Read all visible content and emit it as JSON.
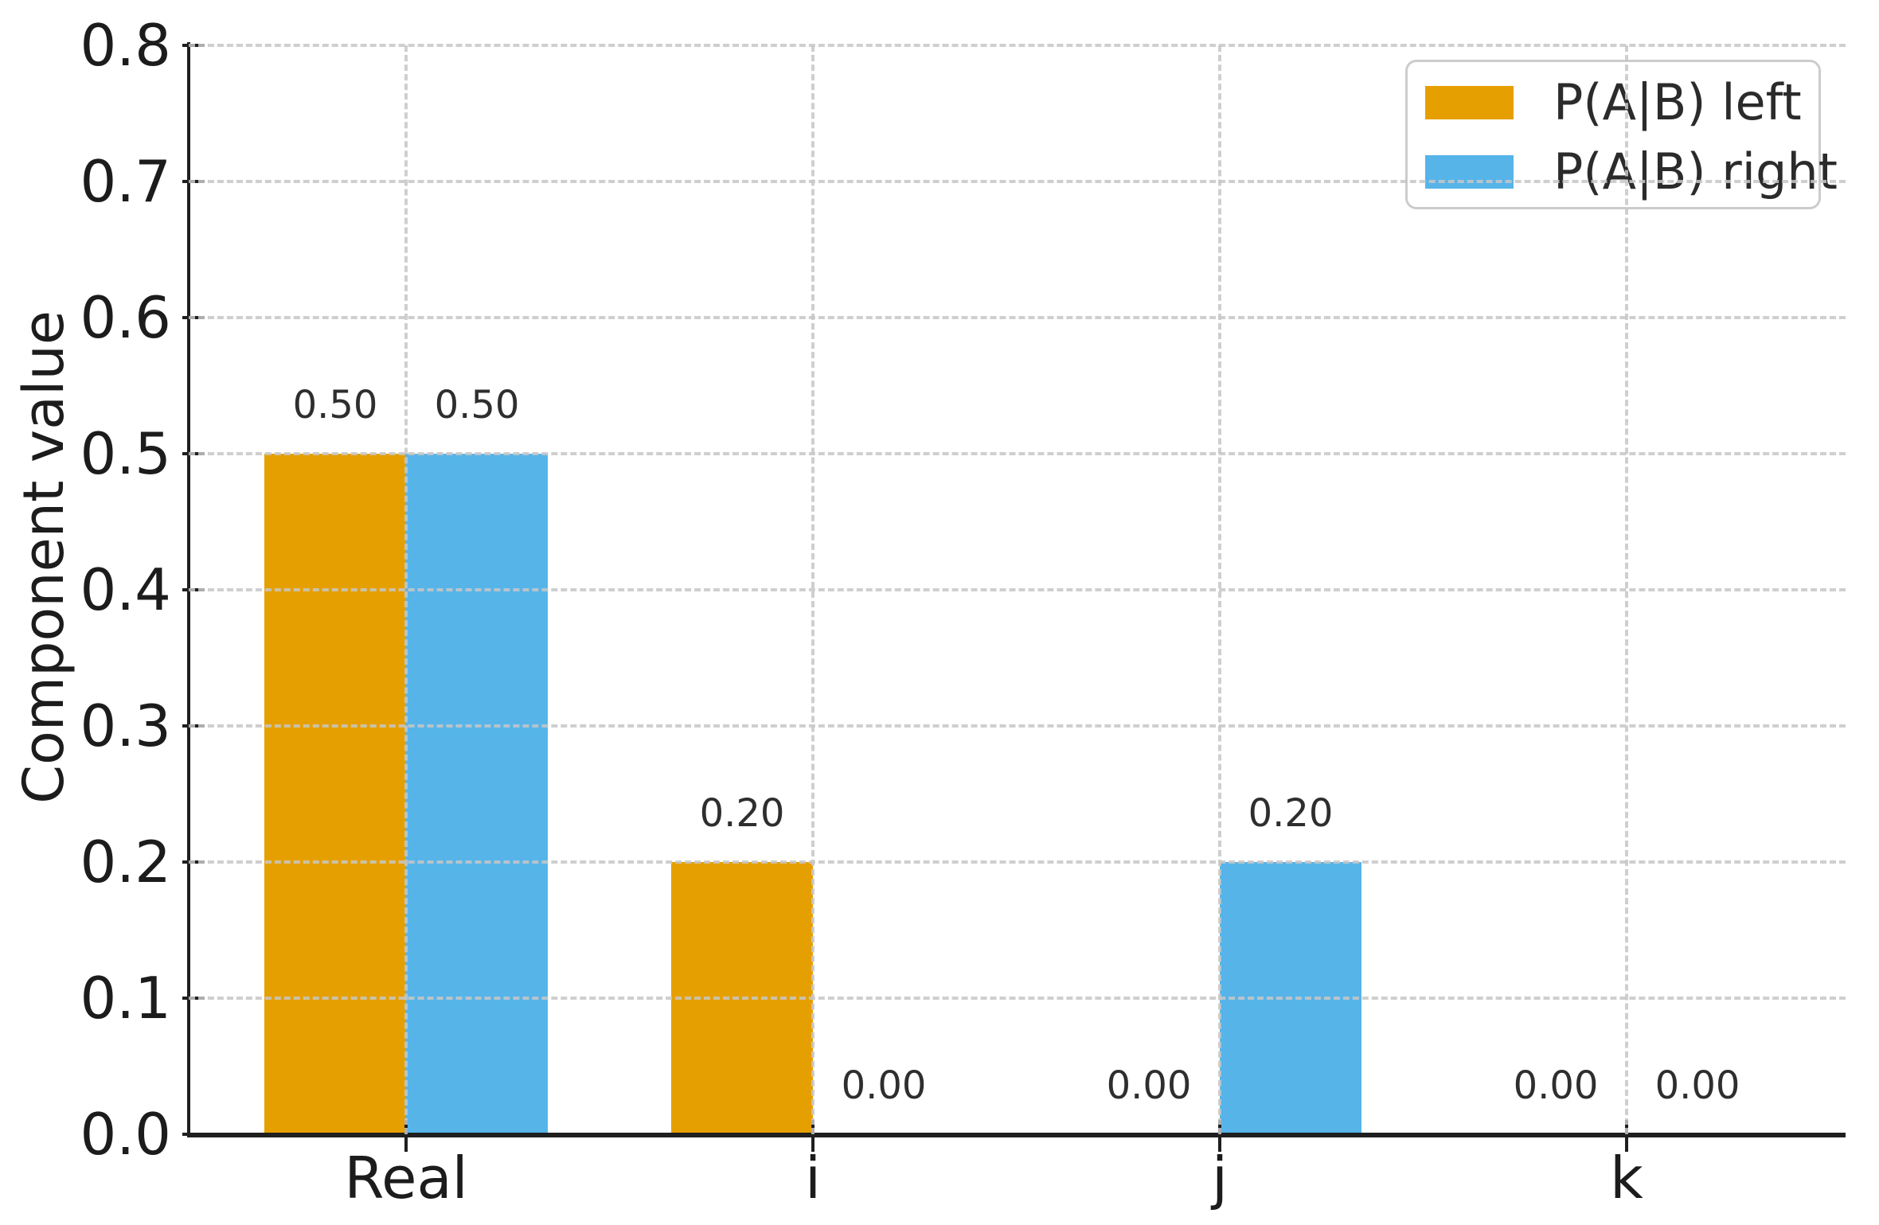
{
  "chart_data": {
    "type": "bar",
    "title": "",
    "xlabel": "",
    "ylabel": "Component value",
    "categories": [
      "Real",
      "i",
      "j",
      "k"
    ],
    "series": [
      {
        "name": "P(A|B) left",
        "color": "#E69F00",
        "values": [
          0.5,
          0.2,
          0.0,
          0.0
        ]
      },
      {
        "name": "P(A|B) right",
        "color": "#56B4E9",
        "values": [
          0.5,
          0.0,
          0.2,
          0.0
        ]
      }
    ],
    "bar_value_labels": [
      [
        "0.50",
        "0.20",
        "0.00",
        "0.00"
      ],
      [
        "0.50",
        "0.00",
        "0.20",
        "0.00"
      ]
    ],
    "ylim": [
      0.0,
      0.8
    ],
    "ytick_labels": [
      "0.0",
      "0.1",
      "0.2",
      "0.3",
      "0.4",
      "0.5",
      "0.6",
      "0.7",
      "0.8"
    ],
    "grid": "dashed horizontal and vertical, drawn above bars",
    "legend_position": "upper right",
    "colors": {
      "left_series": "#E69F00",
      "right_series": "#56B4E9",
      "gridline": "#c7c7c7",
      "spine": "#1f1f1f",
      "text": "#1c1c1c"
    }
  }
}
